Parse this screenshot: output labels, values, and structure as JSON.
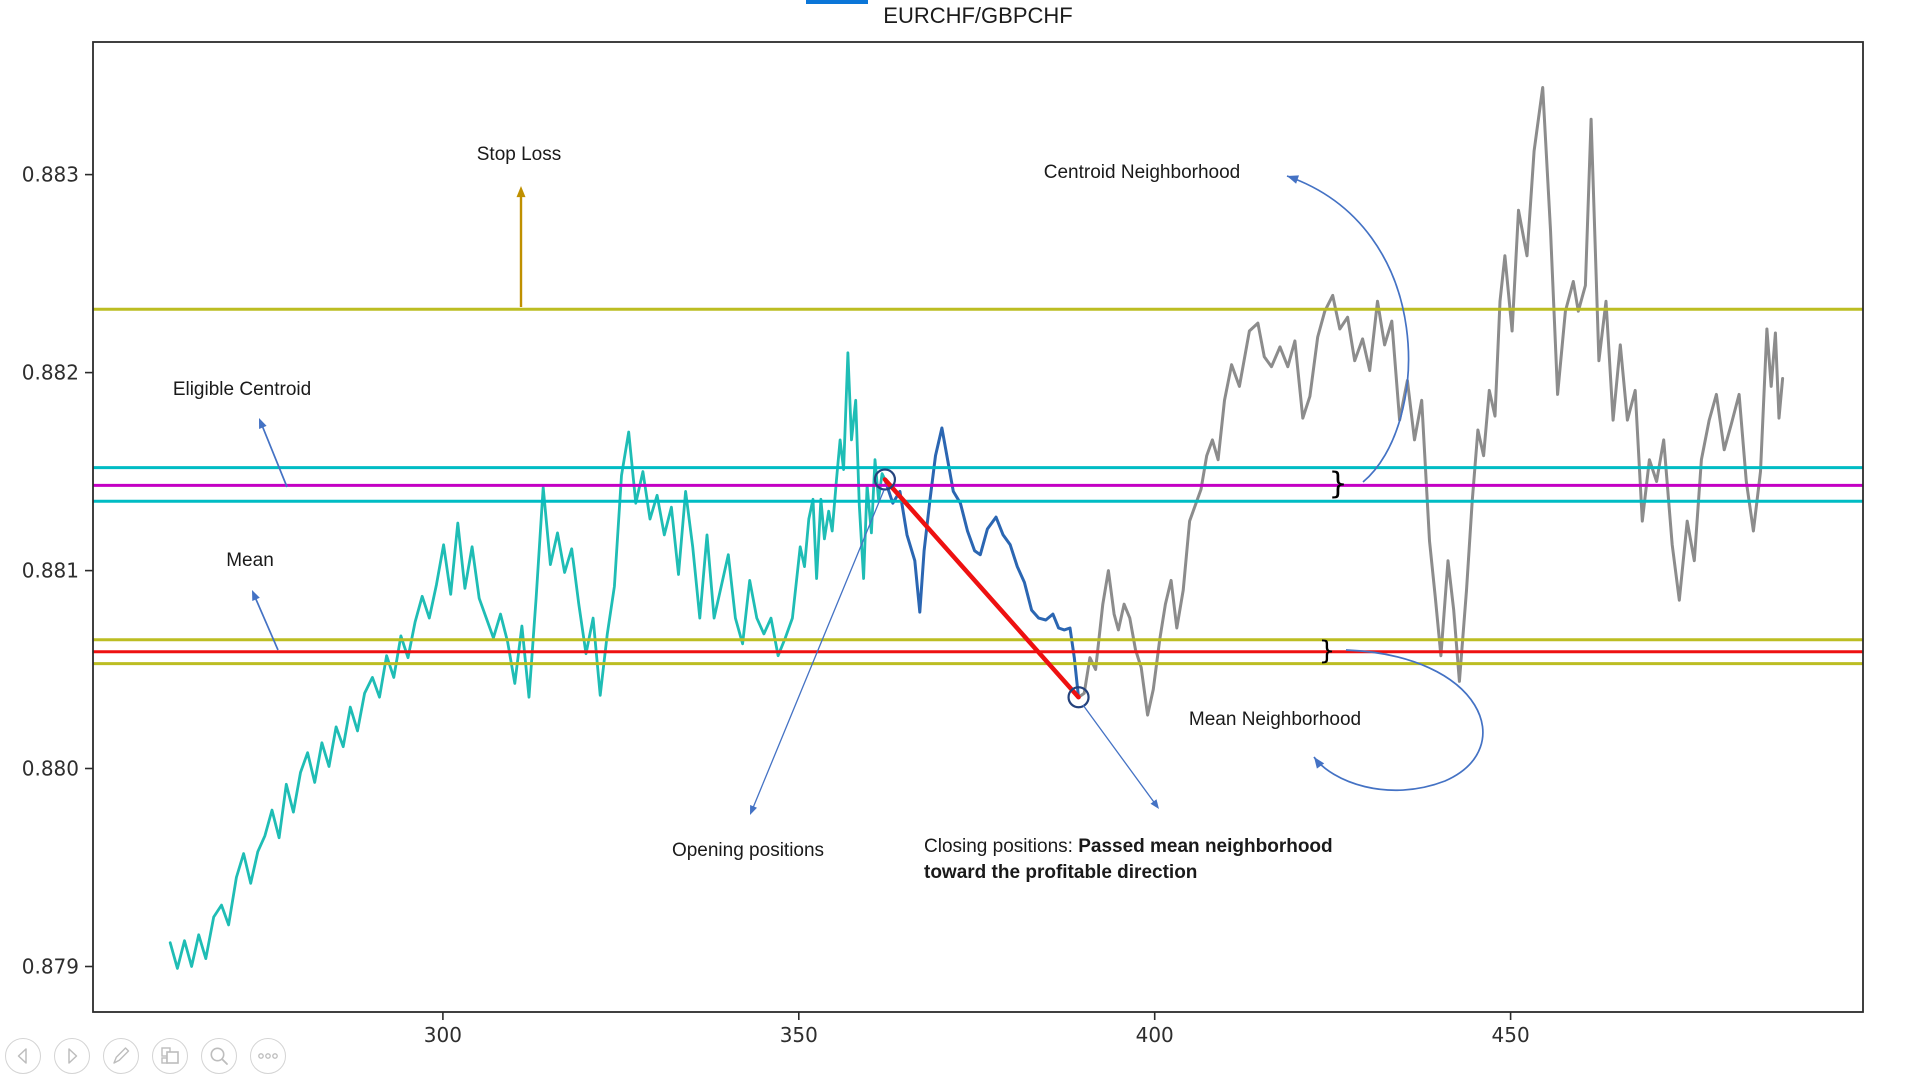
{
  "title": "EURCHF/GBPCHF",
  "colors": {
    "accent_bar": "#0b76d8",
    "annotation_arrow_blue": "#4472c4",
    "stop_loss_arrow_gold": "#bf9000",
    "marker_edge": "#24427c"
  },
  "annotations": {
    "stop_loss": "Stop Loss",
    "eligible_centroid": "Eligible Centroid",
    "mean": "Mean",
    "centroid_neighborhood": "Centroid Neighborhood",
    "mean_neighborhood": "Mean Neighborhood",
    "opening_positions": "Opening positions",
    "closing_prefix": "Closing positions: ",
    "closing_bold_line1": "Passed mean neighborhood",
    "closing_bold_line2": "toward the profitable direction",
    "brace_char": "}"
  },
  "toolbar": {
    "icons": [
      "back-icon",
      "forward-icon",
      "pen-icon",
      "slides-icon",
      "zoom-icon",
      "more-icon"
    ]
  },
  "chart_data": {
    "type": "line",
    "title": "EURCHF/GBPCHF",
    "xlabel": "",
    "ylabel": "",
    "xlim": [
      250.85,
      499.5
    ],
    "ylim": [
      0.87877,
      0.88367
    ],
    "x_ticks": [
      300,
      350,
      400,
      450
    ],
    "y_ticks": [
      0.879,
      0.88,
      0.881,
      0.882,
      0.883
    ],
    "y_tick_decimals": 3,
    "grid": false,
    "legend": null,
    "hlines": [
      {
        "name": "stop-loss",
        "label": "Stop Loss",
        "value": 0.88232,
        "color": "#bcbd22",
        "width": 3
      },
      {
        "name": "centroid-upper",
        "label": "Centroid Neighborhood upper",
        "value": 0.88152,
        "color": "#00bcc4",
        "width": 3
      },
      {
        "name": "eligible-centroid",
        "label": "Eligible Centroid",
        "value": 0.88143,
        "color": "#c400c4",
        "width": 3
      },
      {
        "name": "centroid-lower",
        "label": "Centroid Neighborhood lower",
        "value": 0.88135,
        "color": "#00bcc4",
        "width": 3
      },
      {
        "name": "mean-upper",
        "label": "Mean Neighborhood upper",
        "value": 0.88065,
        "color": "#bcbd22",
        "width": 3
      },
      {
        "name": "mean",
        "label": "Mean",
        "value": 0.88059,
        "color": "#ee1111",
        "width": 3
      },
      {
        "name": "mean-lower",
        "label": "Mean Neighborhood lower",
        "value": 0.88053,
        "color": "#bcbd22",
        "width": 3
      }
    ],
    "trade": {
      "open": {
        "x": 362.1,
        "price": 0.88146
      },
      "close": {
        "x": 389.3,
        "price": 0.88036
      },
      "line_color": "#ee1111",
      "line_width": 4.5,
      "marker_radius": 10,
      "marker_edge_color": "#24427c"
    },
    "series": [
      {
        "name": "price-before-open",
        "color": "#1fbdb5",
        "width": 2.8,
        "points": [
          [
            261.7,
            0.87912
          ],
          [
            262.7,
            0.87899
          ],
          [
            263.7,
            0.87913
          ],
          [
            264.7,
            0.879
          ],
          [
            265.7,
            0.87916
          ],
          [
            266.7,
            0.87904
          ],
          [
            267.8,
            0.87925
          ],
          [
            268.9,
            0.87931
          ],
          [
            269.9,
            0.87921
          ],
          [
            271.0,
            0.87945
          ],
          [
            272.0,
            0.87957
          ],
          [
            273.0,
            0.87942
          ],
          [
            274.0,
            0.87958
          ],
          [
            275.0,
            0.87966
          ],
          [
            276.0,
            0.87979
          ],
          [
            277.0,
            0.87965
          ],
          [
            278.0,
            0.87992
          ],
          [
            279.0,
            0.87978
          ],
          [
            280.0,
            0.87998
          ],
          [
            281.0,
            0.88008
          ],
          [
            282.0,
            0.87993
          ],
          [
            283.0,
            0.88013
          ],
          [
            284.0,
            0.88001
          ],
          [
            285.0,
            0.88021
          ],
          [
            286.0,
            0.88011
          ],
          [
            287.0,
            0.88031
          ],
          [
            288.0,
            0.88019
          ],
          [
            289.0,
            0.88038
          ],
          [
            290.1,
            0.88046
          ],
          [
            291.1,
            0.88036
          ],
          [
            292.1,
            0.88057
          ],
          [
            293.1,
            0.88046
          ],
          [
            294.1,
            0.88067
          ],
          [
            295.1,
            0.88056
          ],
          [
            296.1,
            0.88074
          ],
          [
            297.1,
            0.88087
          ],
          [
            298.1,
            0.88076
          ],
          [
            299.1,
            0.88093
          ],
          [
            300.1,
            0.88113
          ],
          [
            301.1,
            0.88088
          ],
          [
            302.1,
            0.88124
          ],
          [
            303.1,
            0.88091
          ],
          [
            304.1,
            0.88112
          ],
          [
            305.1,
            0.88086
          ],
          [
            306.1,
            0.88076
          ],
          [
            307.1,
            0.88066
          ],
          [
            308.1,
            0.88078
          ],
          [
            309.1,
            0.88064
          ],
          [
            310.1,
            0.88043
          ],
          [
            311.1,
            0.88072
          ],
          [
            312.1,
            0.88036
          ],
          [
            313.1,
            0.88086
          ],
          [
            314.1,
            0.88142
          ],
          [
            315.1,
            0.88103
          ],
          [
            316.1,
            0.88119
          ],
          [
            317.1,
            0.88099
          ],
          [
            318.1,
            0.88111
          ],
          [
            319.1,
            0.88083
          ],
          [
            320.1,
            0.88058
          ],
          [
            321.1,
            0.88076
          ],
          [
            322.1,
            0.88037
          ],
          [
            323.1,
            0.88068
          ],
          [
            324.1,
            0.88092
          ],
          [
            325.1,
            0.88148
          ],
          [
            326.1,
            0.8817
          ],
          [
            327.1,
            0.88134
          ],
          [
            328.1,
            0.8815
          ],
          [
            329.1,
            0.88126
          ],
          [
            330.1,
            0.88138
          ],
          [
            331.1,
            0.88118
          ],
          [
            332.1,
            0.88132
          ],
          [
            333.1,
            0.88098
          ],
          [
            334.1,
            0.8814
          ],
          [
            335.1,
            0.88112
          ],
          [
            336.1,
            0.88076
          ],
          [
            337.1,
            0.88118
          ],
          [
            338.1,
            0.88076
          ],
          [
            339.1,
            0.88092
          ],
          [
            340.1,
            0.88108
          ],
          [
            341.1,
            0.88076
          ],
          [
            342.1,
            0.88063
          ],
          [
            343.1,
            0.88095
          ],
          [
            344.1,
            0.88076
          ],
          [
            345.1,
            0.88068
          ],
          [
            346.1,
            0.88076
          ],
          [
            347.1,
            0.88057
          ],
          [
            348.1,
            0.88066
          ],
          [
            349.1,
            0.88076
          ],
          [
            350.2,
            0.88112
          ],
          [
            350.8,
            0.88102
          ],
          [
            351.4,
            0.88126
          ],
          [
            352.0,
            0.88136
          ],
          [
            352.5,
            0.88096
          ],
          [
            353.1,
            0.88136
          ],
          [
            353.6,
            0.88116
          ],
          [
            354.2,
            0.8813
          ],
          [
            354.7,
            0.8812
          ],
          [
            355.3,
            0.88146
          ],
          [
            355.8,
            0.88166
          ],
          [
            356.3,
            0.88151
          ],
          [
            356.9,
            0.8821
          ],
          [
            357.4,
            0.88166
          ],
          [
            358.0,
            0.88186
          ],
          [
            358.5,
            0.88133
          ],
          [
            359.1,
            0.88096
          ],
          [
            359.6,
            0.88143
          ],
          [
            360.2,
            0.88119
          ],
          [
            360.7,
            0.88156
          ],
          [
            361.2,
            0.88136
          ],
          [
            361.7,
            0.88149
          ],
          [
            362.1,
            0.88146
          ]
        ]
      },
      {
        "name": "price-open-to-close",
        "color": "#2b66b2",
        "width": 3,
        "points": [
          [
            362.1,
            0.88146
          ],
          [
            363.2,
            0.88134
          ],
          [
            364.2,
            0.8814
          ],
          [
            365.2,
            0.88118
          ],
          [
            366.3,
            0.88105
          ],
          [
            367.0,
            0.88079
          ],
          [
            367.6,
            0.8811
          ],
          [
            368.4,
            0.88135
          ],
          [
            369.2,
            0.88158
          ],
          [
            370.1,
            0.88172
          ],
          [
            370.9,
            0.88156
          ],
          [
            371.7,
            0.8814
          ],
          [
            372.7,
            0.88134
          ],
          [
            373.7,
            0.8812
          ],
          [
            374.7,
            0.8811
          ],
          [
            375.5,
            0.88108
          ],
          [
            376.5,
            0.88121
          ],
          [
            377.7,
            0.88127
          ],
          [
            378.7,
            0.88118
          ],
          [
            379.7,
            0.88113
          ],
          [
            380.7,
            0.88102
          ],
          [
            381.7,
            0.88094
          ],
          [
            382.7,
            0.8808
          ],
          [
            383.7,
            0.88076
          ],
          [
            384.7,
            0.88075
          ],
          [
            385.7,
            0.88078
          ],
          [
            386.5,
            0.88071
          ],
          [
            387.3,
            0.8807
          ],
          [
            388.1,
            0.88071
          ],
          [
            388.7,
            0.88056
          ],
          [
            389.3,
            0.88036
          ]
        ]
      },
      {
        "name": "price-after-close",
        "color": "#8c8c8c",
        "width": 3,
        "points": [
          [
            389.3,
            0.88036
          ],
          [
            390.1,
            0.88038
          ],
          [
            390.9,
            0.88056
          ],
          [
            391.7,
            0.8805
          ],
          [
            392.7,
            0.88083
          ],
          [
            393.5,
            0.881
          ],
          [
            394.3,
            0.88078
          ],
          [
            394.9,
            0.8807
          ],
          [
            395.7,
            0.88083
          ],
          [
            396.5,
            0.88076
          ],
          [
            397.3,
            0.8806
          ],
          [
            398.1,
            0.88051
          ],
          [
            399.0,
            0.88027
          ],
          [
            399.8,
            0.8804
          ],
          [
            400.7,
            0.88065
          ],
          [
            401.5,
            0.88083
          ],
          [
            402.3,
            0.88095
          ],
          [
            403.1,
            0.88071
          ],
          [
            404.0,
            0.8809
          ],
          [
            404.9,
            0.88125
          ],
          [
            405.7,
            0.88133
          ],
          [
            406.5,
            0.88141
          ],
          [
            407.3,
            0.88158
          ],
          [
            408.1,
            0.88166
          ],
          [
            408.9,
            0.88156
          ],
          [
            409.8,
            0.88186
          ],
          [
            410.8,
            0.88204
          ],
          [
            411.9,
            0.88193
          ],
          [
            413.3,
            0.88221
          ],
          [
            414.5,
            0.88225
          ],
          [
            415.4,
            0.88208
          ],
          [
            416.4,
            0.88203
          ],
          [
            417.6,
            0.88213
          ],
          [
            418.7,
            0.88203
          ],
          [
            419.7,
            0.88216
          ],
          [
            420.8,
            0.88177
          ],
          [
            421.8,
            0.88188
          ],
          [
            422.9,
            0.88218
          ],
          [
            423.9,
            0.88231
          ],
          [
            425.0,
            0.88239
          ],
          [
            426.0,
            0.88222
          ],
          [
            427.1,
            0.88228
          ],
          [
            428.1,
            0.88206
          ],
          [
            429.2,
            0.88217
          ],
          [
            430.2,
            0.88201
          ],
          [
            431.3,
            0.88236
          ],
          [
            432.3,
            0.88214
          ],
          [
            433.3,
            0.88226
          ],
          [
            434.4,
            0.88176
          ],
          [
            435.5,
            0.88196
          ],
          [
            436.5,
            0.88166
          ],
          [
            437.5,
            0.88186
          ],
          [
            438.6,
            0.88115
          ],
          [
            439.4,
            0.88087
          ],
          [
            440.2,
            0.88057
          ],
          [
            441.2,
            0.88105
          ],
          [
            442.0,
            0.8808
          ],
          [
            442.8,
            0.88044
          ],
          [
            443.8,
            0.8809
          ],
          [
            444.6,
            0.88135
          ],
          [
            445.4,
            0.88171
          ],
          [
            446.2,
            0.88158
          ],
          [
            447.0,
            0.88191
          ],
          [
            447.8,
            0.88178
          ],
          [
            448.5,
            0.88236
          ],
          [
            449.2,
            0.88259
          ],
          [
            450.2,
            0.88221
          ],
          [
            451.1,
            0.88282
          ],
          [
            452.3,
            0.88259
          ],
          [
            453.3,
            0.88312
          ],
          [
            454.5,
            0.88344
          ],
          [
            455.6,
            0.88272
          ],
          [
            456.6,
            0.88189
          ],
          [
            457.7,
            0.88231
          ],
          [
            458.8,
            0.88246
          ],
          [
            459.5,
            0.88231
          ],
          [
            460.5,
            0.88244
          ],
          [
            461.3,
            0.88328
          ],
          [
            462.4,
            0.88206
          ],
          [
            463.4,
            0.88236
          ],
          [
            464.4,
            0.88176
          ],
          [
            465.4,
            0.88214
          ],
          [
            466.4,
            0.88176
          ],
          [
            467.5,
            0.88191
          ],
          [
            468.5,
            0.88125
          ],
          [
            469.5,
            0.88156
          ],
          [
            470.5,
            0.88145
          ],
          [
            471.5,
            0.88166
          ],
          [
            472.7,
            0.88113
          ],
          [
            473.7,
            0.88085
          ],
          [
            474.8,
            0.88125
          ],
          [
            475.8,
            0.88105
          ],
          [
            476.8,
            0.88156
          ],
          [
            477.9,
            0.88176
          ],
          [
            478.9,
            0.88189
          ],
          [
            480.0,
            0.88161
          ],
          [
            481.0,
            0.88174
          ],
          [
            482.1,
            0.88189
          ],
          [
            483.1,
            0.88145
          ],
          [
            484.1,
            0.8812
          ],
          [
            485.1,
            0.8815
          ],
          [
            486.0,
            0.88222
          ],
          [
            486.6,
            0.88193
          ],
          [
            487.2,
            0.8822
          ],
          [
            487.7,
            0.88177
          ],
          [
            488.2,
            0.88197
          ]
        ]
      }
    ]
  }
}
